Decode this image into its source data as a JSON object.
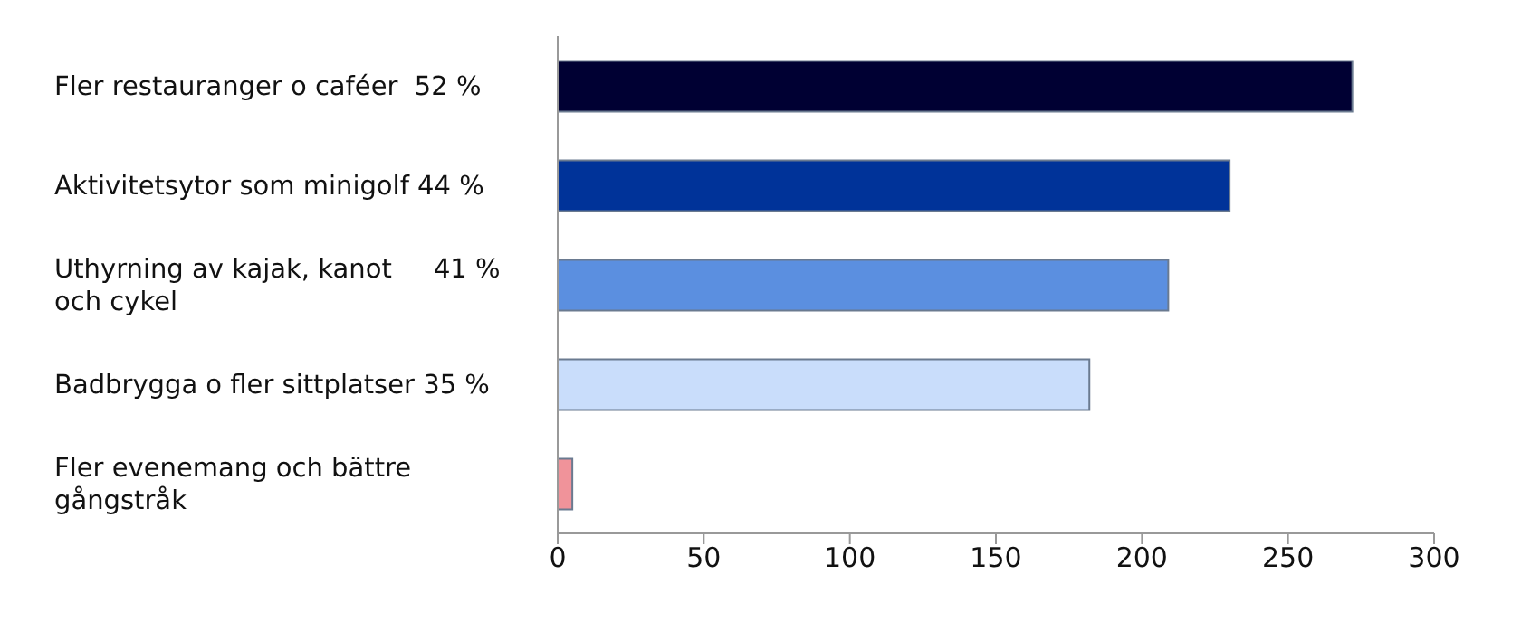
{
  "chart_data": {
    "type": "bar",
    "orientation": "horizontal",
    "categories": [
      "Fler restauranger o caféer  52 %",
      "Aktivitetsytor som minigolf 44 %",
      "Uthyrning av kajak, kanot     41 %\noch cykel",
      "Badbrygga o fler sittplatser 35 %",
      "Fler evenemang och bättre\ngångstråk"
    ],
    "values": [
      272,
      230,
      209,
      182,
      5
    ],
    "colors": [
      "#000033",
      "#003399",
      "#5b8fe0",
      "#c9ddfb",
      "#f0939a"
    ],
    "xlim": [
      0,
      300
    ],
    "xticks": [
      0,
      50,
      100,
      150,
      200,
      250,
      300
    ],
    "grid": false,
    "legend": false
  }
}
